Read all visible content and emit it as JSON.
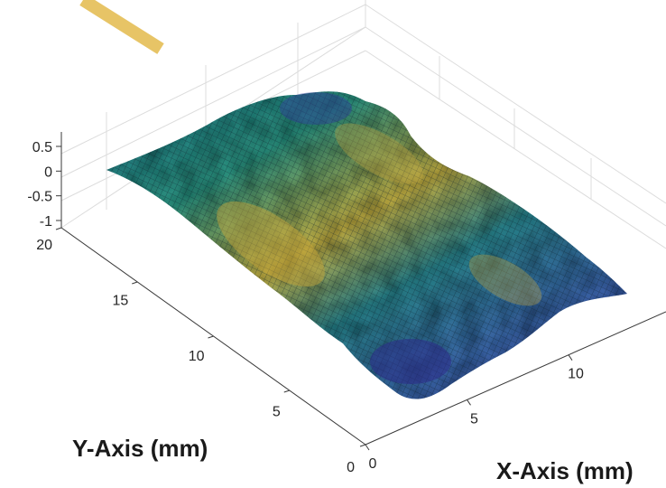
{
  "chart_data": {
    "type": "surface",
    "title": "",
    "xlabel": "X-Axis (mm)",
    "ylabel": "Y-Axis (mm)",
    "zlabel": "",
    "x_ticks": [
      "0",
      "5",
      "10"
    ],
    "y_ticks": [
      "0",
      "5",
      "10",
      "15",
      "20"
    ],
    "z_ticks": [
      "-1",
      "-0.5",
      "0",
      "0.5"
    ],
    "xlim": [
      0,
      13
    ],
    "ylim": [
      0,
      20
    ],
    "zlim": [
      -1,
      0.6
    ],
    "grid": true,
    "colormap": "parula",
    "description_values": {
      "surface_height_range_mm": [
        -0.9,
        0.5
      ]
    }
  },
  "colors": {
    "accent_stripe": "#e7c466",
    "colormap_low": "#352a87",
    "colormap_mid": "#1a8a8a",
    "colormap_high": "#d6b441"
  }
}
